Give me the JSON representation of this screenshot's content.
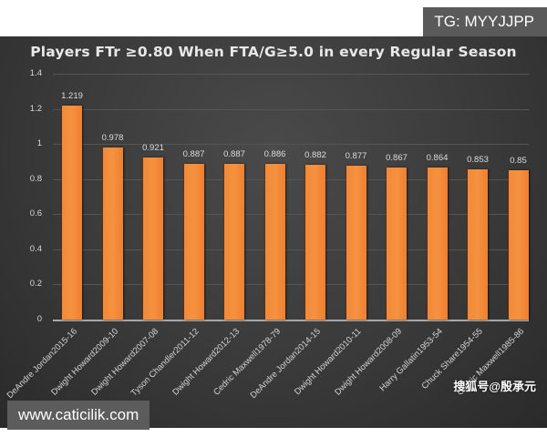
{
  "watermarks": {
    "top_right": "TG: MYYJJPP",
    "bottom_left": "www.caticilik.com",
    "bottom_right": "搜狐号@殷承元"
  },
  "colors": {
    "bar": "#f5913f",
    "background": "#3a3a3a",
    "text": "#dcdcdc"
  },
  "chart_data": {
    "type": "bar",
    "title": "Players FTr ≥0.80 When FTA/G≥5.0 in every Regular Season",
    "xlabel": "",
    "ylabel": "",
    "ylim": [
      0,
      1.4
    ],
    "yticks": [
      "0",
      "0.2",
      "0.4",
      "0.6",
      "0.8",
      "1",
      "1.2",
      "1.4"
    ],
    "grid": true,
    "legend": "none",
    "categories": [
      "DeAndre Jordan2015-16",
      "Dwight Howard2009-10",
      "Dwight Howard2007-08",
      "Tyson Chandler2011-12",
      "Dwight Howard2012-13",
      "Cedric Maxwell1978-79",
      "DeAndre Jordan2014-15",
      "Dwight Howard2010-11",
      "Dwight Howard2008-09",
      "Harry Gallatin1953-54",
      "Chuck Share1954-55",
      "Cedric Maxwell1985-86"
    ],
    "values": [
      1.219,
      0.978,
      0.921,
      0.887,
      0.887,
      0.886,
      0.882,
      0.877,
      0.867,
      0.864,
      0.853,
      0.85
    ],
    "value_labels": [
      "1.219",
      "0.978",
      "0.921",
      "0.887",
      "0.887",
      "0.886",
      "0.882",
      "0.877",
      "0.867",
      "0.864",
      "0.853",
      "0.85"
    ]
  }
}
